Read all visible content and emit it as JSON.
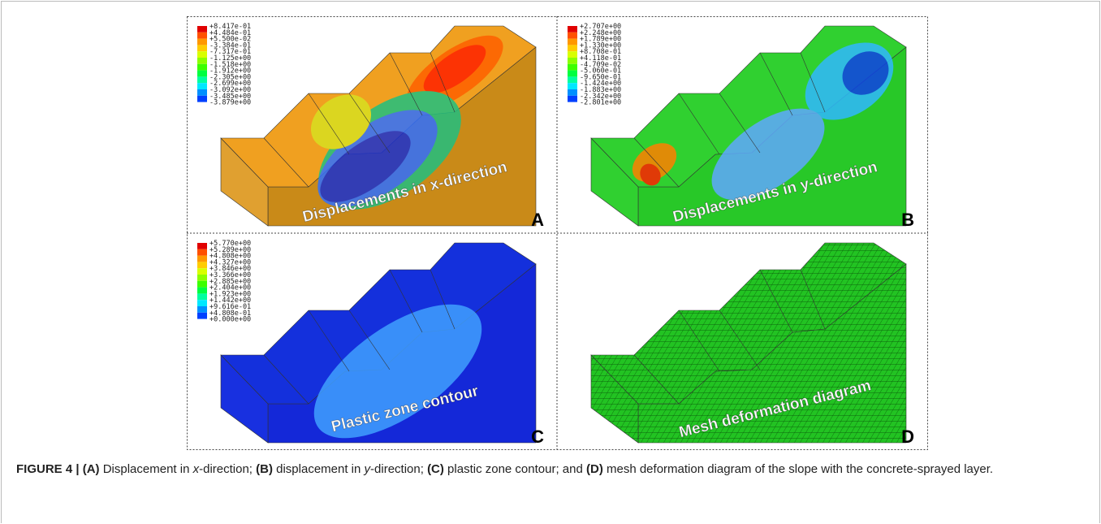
{
  "figure": {
    "panels": [
      {
        "label": "A",
        "caption": "Displacements in x-direction",
        "legend": [
          "+8.417e-01",
          "+4.484e-01",
          "+5.500e-02",
          "-3.384e-01",
          "-7.317e-01",
          "-1.125e+00",
          "-1.518e+00",
          "-1.912e+00",
          "-2.305e+00",
          "-2.699e+00",
          "-3.092e+00",
          "-3.485e+00",
          "-3.879e+00"
        ]
      },
      {
        "label": "B",
        "caption": "Displacements in y-direction",
        "legend": [
          "+2.707e+00",
          "+2.248e+00",
          "+1.789e+00",
          "+1.330e+00",
          "+8.708e-01",
          "+4.118e-01",
          "-4.709e-02",
          "-5.060e-01",
          "-9.650e-01",
          "-1.424e+00",
          "-1.883e+00",
          "-2.342e+00",
          "-2.801e+00"
        ]
      },
      {
        "label": "C",
        "caption": "Plastic zone contour",
        "legend": [
          "+5.770e+00",
          "+5.289e+00",
          "+4.808e+00",
          "+4.327e+00",
          "+3.846e+00",
          "+3.366e+00",
          "+2.885e+00",
          "+2.404e+00",
          "+1.923e+00",
          "+1.442e+00",
          "+9.616e-01",
          "+4.808e-01",
          "+0.000e+00"
        ]
      },
      {
        "label": "D",
        "caption": "Mesh deformation diagram"
      }
    ],
    "caption": [
      "FIGURE 4 | ",
      "(A)",
      " Displacement in ",
      "x",
      "-direction; ",
      "(B)",
      " displacement in ",
      "y",
      "-direction; ",
      "(C)",
      " plastic zone contour; and ",
      "(D)",
      " mesh deformation diagram of the slope with the concrete-sprayed layer."
    ]
  }
}
